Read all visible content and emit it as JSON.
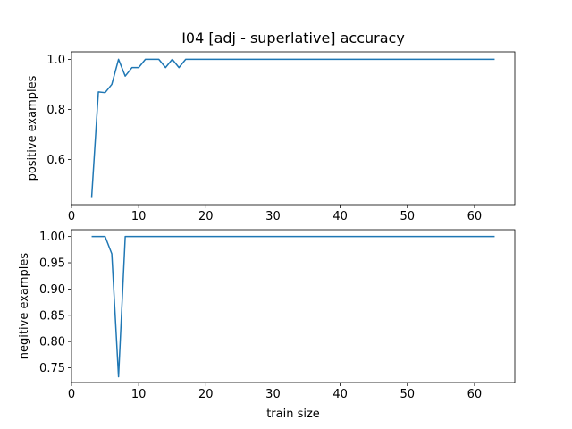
{
  "figure_title": "I04 [adj - superlative] accuracy",
  "chart_data": [
    {
      "type": "line",
      "title": "I04 [adj - superlative] accuracy",
      "xlabel": "",
      "ylabel": "positive examples",
      "xlim": [
        0,
        66
      ],
      "ylim": [
        0.42,
        1.03
      ],
      "xticks": [
        0,
        10,
        20,
        30,
        40,
        50,
        60
      ],
      "yticks": [
        0.6,
        0.8,
        1.0
      ],
      "ytick_labels": [
        "0.6",
        "0.8",
        "1.0"
      ],
      "grid": false,
      "color": "#1f77b4",
      "series": [
        {
          "x": [
            3,
            4,
            5,
            6,
            7,
            8,
            9,
            10,
            11,
            12,
            13,
            14,
            15,
            16,
            17,
            18,
            19,
            20,
            21,
            22,
            23,
            24,
            25,
            26,
            27,
            28,
            29,
            30,
            31,
            32,
            33,
            34,
            35,
            36,
            37,
            38,
            39,
            40,
            41,
            42,
            43,
            44,
            45,
            46,
            47,
            48,
            49,
            50,
            51,
            52,
            53,
            54,
            55,
            56,
            57,
            58,
            59,
            60,
            61,
            62,
            63
          ],
          "y": [
            0.45,
            0.87,
            0.867,
            0.9,
            1.0,
            0.933,
            0.967,
            0.967,
            1.0,
            1.0,
            1.0,
            0.967,
            1.0,
            0.967,
            1.0,
            1.0,
            1.0,
            1.0,
            1.0,
            1.0,
            1.0,
            1.0,
            1.0,
            1.0,
            1.0,
            1.0,
            1.0,
            1.0,
            1.0,
            1.0,
            1.0,
            1.0,
            1.0,
            1.0,
            1.0,
            1.0,
            1.0,
            1.0,
            1.0,
            1.0,
            1.0,
            1.0,
            1.0,
            1.0,
            1.0,
            1.0,
            1.0,
            1.0,
            1.0,
            1.0,
            1.0,
            1.0,
            1.0,
            1.0,
            1.0,
            1.0,
            1.0,
            1.0,
            1.0,
            1.0,
            1.0
          ]
        }
      ]
    },
    {
      "type": "line",
      "title": "",
      "xlabel": "train size",
      "ylabel": "negitive examples",
      "xlim": [
        0,
        66
      ],
      "ylim": [
        0.722,
        1.013
      ],
      "xticks": [
        0,
        10,
        20,
        30,
        40,
        50,
        60
      ],
      "yticks": [
        0.75,
        0.8,
        0.85,
        0.9,
        0.95,
        1.0
      ],
      "ytick_labels": [
        "0.75",
        "0.80",
        "0.85",
        "0.90",
        "0.95",
        "1.00"
      ],
      "grid": false,
      "color": "#1f77b4",
      "series": [
        {
          "x": [
            3,
            4,
            5,
            6,
            7,
            8,
            9,
            10,
            11,
            12,
            13,
            14,
            15,
            16,
            17,
            18,
            19,
            20,
            21,
            22,
            23,
            24,
            25,
            26,
            27,
            28,
            29,
            30,
            31,
            32,
            33,
            34,
            35,
            36,
            37,
            38,
            39,
            40,
            41,
            42,
            43,
            44,
            45,
            46,
            47,
            48,
            49,
            50,
            51,
            52,
            53,
            54,
            55,
            56,
            57,
            58,
            59,
            60,
            61,
            62,
            63
          ],
          "y": [
            1.0,
            1.0,
            1.0,
            0.967,
            0.733,
            1.0,
            1.0,
            1.0,
            1.0,
            1.0,
            1.0,
            1.0,
            1.0,
            1.0,
            1.0,
            1.0,
            1.0,
            1.0,
            1.0,
            1.0,
            1.0,
            1.0,
            1.0,
            1.0,
            1.0,
            1.0,
            1.0,
            1.0,
            1.0,
            1.0,
            1.0,
            1.0,
            1.0,
            1.0,
            1.0,
            1.0,
            1.0,
            1.0,
            1.0,
            1.0,
            1.0,
            1.0,
            1.0,
            1.0,
            1.0,
            1.0,
            1.0,
            1.0,
            1.0,
            1.0,
            1.0,
            1.0,
            1.0,
            1.0,
            1.0,
            1.0,
            1.0,
            1.0,
            1.0,
            1.0,
            1.0
          ]
        }
      ]
    }
  ]
}
